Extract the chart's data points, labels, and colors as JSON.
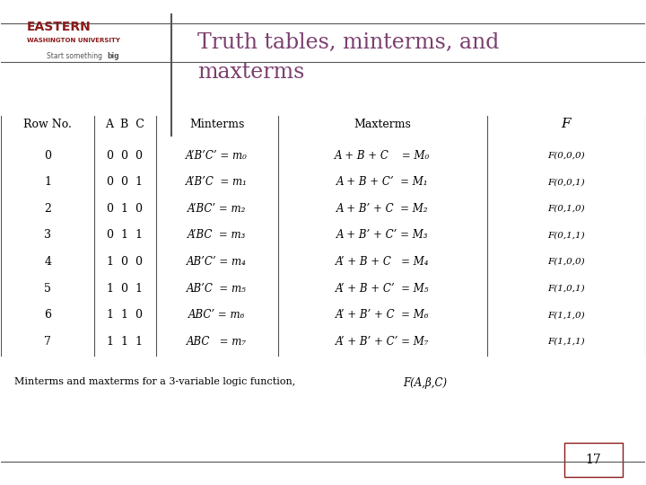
{
  "title_line1": "Truth tables, minterms, and",
  "title_line2": "maxterms",
  "title_color": "#7B3F6E",
  "slide_number": "17",
  "header_color": "#8B1A1A",
  "bg_color": "#FFFFFF",
  "col_headers": [
    "Row No.",
    "A  B  C",
    "Minterms",
    "Maxterms",
    "F"
  ],
  "rows": [
    {
      "no": "0",
      "abc": "0  0  0",
      "minterm": "A’B’C’ = m₀",
      "maxterm": "A + B + C    = M₀",
      "f": "F(0,0,0)"
    },
    {
      "no": "1",
      "abc": "0  0  1",
      "minterm": "A’B’C  = m₁",
      "maxterm": "A + B + C’  = M₁",
      "f": "F(0,0,1)"
    },
    {
      "no": "2",
      "abc": "0  1  0",
      "minterm": "A’BC’ = m₂",
      "maxterm": "A + B’ + C  = M₂",
      "f": "F(0,1,0)"
    },
    {
      "no": "3",
      "abc": "0  1  1",
      "minterm": "A’BC  = m₃",
      "maxterm": "A + B’ + C’ = M₃",
      "f": "F(0,1,1)"
    },
    {
      "no": "4",
      "abc": "1  0  0",
      "minterm": "AB’C’ = m₄",
      "maxterm": "A’ + B + C   = M₄",
      "f": "F(1,0,0)"
    },
    {
      "no": "5",
      "abc": "1  0  1",
      "minterm": "AB’C  = m₅",
      "maxterm": "A’ + B + C’  = M₅",
      "f": "F(1,0,1)"
    },
    {
      "no": "6",
      "abc": "1  1  0",
      "minterm": "ABC’ = m₆",
      "maxterm": "A’ + B’ + C  = M₆",
      "f": "F(1,1,0)"
    },
    {
      "no": "7",
      "abc": "1  1  1",
      "minterm": "ABC   = m₇",
      "maxterm": "A’ + B’ + C’ = M₇",
      "f": "F(1,1,1)"
    }
  ],
  "caption": "Minterms and maxterms for a 3-variable logic function,  F(A,β,C)",
  "divider_color": "#000000",
  "table_line_color": "#555555"
}
